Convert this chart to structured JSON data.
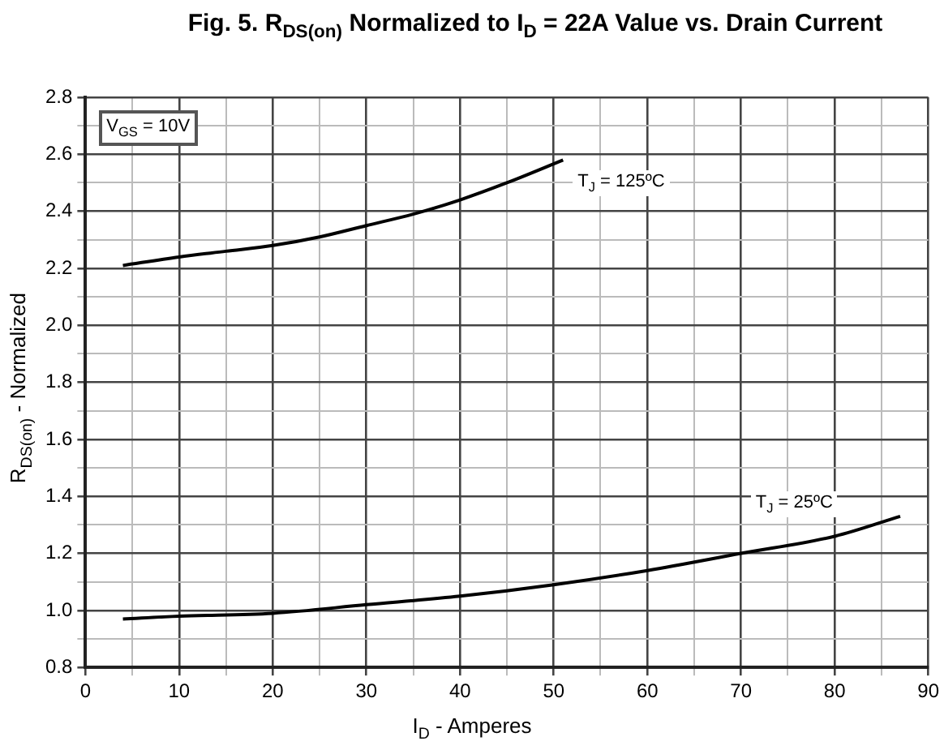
{
  "chart_data": {
    "type": "line",
    "title": "Fig. 5. R$_{DS(on)}$ Normalized to I$_{D}$ = 22A Value vs. Drain Current",
    "xlabel": "I$_{D}$ - Amperes",
    "ylabel": "R$_{DS(on)}$ - Normalized",
    "annotations": [
      "V$_{GS}$ = 10V"
    ],
    "series": [
      {
        "name": "T$_{J}$ = 125ºC",
        "color": "#000000",
        "x": [
          4,
          10,
          15,
          20,
          25,
          30,
          35,
          40,
          45,
          51
        ],
        "values": [
          2.21,
          2.24,
          2.26,
          2.28,
          2.31,
          2.35,
          2.39,
          2.44,
          2.5,
          2.58
        ]
      },
      {
        "name": "T$_{J}$ = 25ºC",
        "color": "#000000",
        "x": [
          4,
          10,
          20,
          30,
          40,
          50,
          60,
          70,
          80,
          87
        ],
        "values": [
          0.97,
          0.98,
          0.99,
          1.02,
          1.05,
          1.09,
          1.14,
          1.2,
          1.26,
          1.33
        ]
      }
    ],
    "xlim": [
      0,
      90
    ],
    "ylim": [
      0.8,
      2.8
    ],
    "xticks": [
      0,
      {
        "value": 5,
        "label": null
      },
      10,
      {
        "value": 15,
        "label": null
      },
      20,
      {
        "value": 25,
        "label": null
      },
      30,
      {
        "value": 35,
        "label": null
      },
      40,
      {
        "value": 45,
        "label": null
      },
      50,
      {
        "value": 55,
        "label": null
      },
      60,
      {
        "value": 65,
        "label": null
      },
      70,
      {
        "value": 75,
        "label": null
      },
      80,
      {
        "value": 85,
        "label": null
      },
      90
    ],
    "yticks": [
      {
        "value": 0.8,
        "label": "0.8"
      },
      {
        "value": 0.9,
        "label": null
      },
      {
        "value": 1.0,
        "label": "1.0"
      },
      {
        "value": 1.1,
        "label": null
      },
      {
        "value": 1.2,
        "label": "1.2"
      },
      {
        "value": 1.3,
        "label": null
      },
      {
        "value": 1.4,
        "label": "1.4"
      },
      {
        "value": 1.5,
        "label": null
      },
      {
        "value": 1.6,
        "label": "1.6"
      },
      {
        "value": 1.7,
        "label": null
      },
      {
        "value": 1.8,
        "label": "1.8"
      },
      {
        "value": 1.9,
        "label": null
      },
      {
        "value": 2.0,
        "label": "2.0"
      },
      {
        "value": 2.1,
        "label": null
      },
      {
        "value": 2.2,
        "label": "2.2"
      },
      {
        "value": 2.3,
        "label": null
      },
      {
        "value": 2.4,
        "label": "2.4"
      },
      {
        "value": 2.5,
        "label": null
      },
      {
        "value": 2.6,
        "label": "2.6"
      },
      {
        "value": 2.7,
        "label": null
      },
      {
        "value": 2.8,
        "label": "2.8"
      }
    ],
    "grid": true,
    "legend": false,
    "marker": "none",
    "line_style": "solid"
  }
}
